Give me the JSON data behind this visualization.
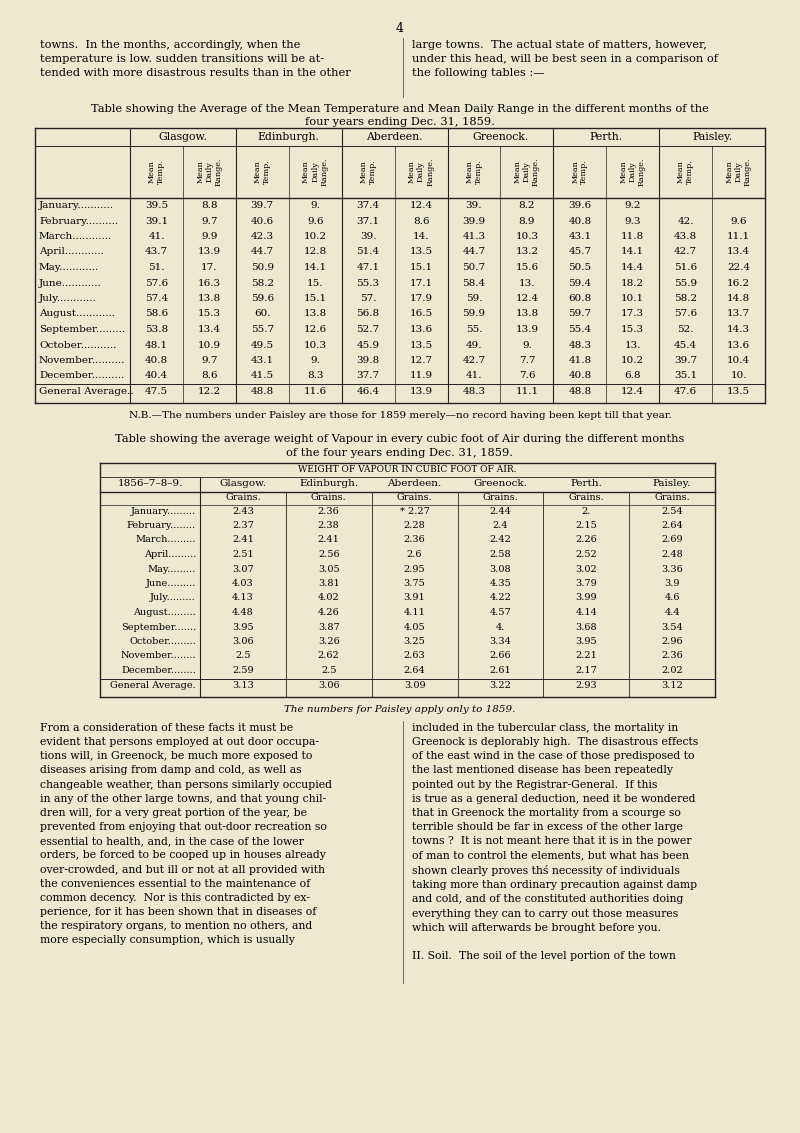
{
  "bg_color": "#ede8d0",
  "page_number": "4",
  "intro_left": "towns.  In the months, accordingly, when the\ntemperature is low. sudden transitions will be at-\ntended with more disastrous results than in the other",
  "intro_right": "large towns.  The actual state of matters, however,\nunder this head, will be best seen in a comparison of\nthe following tables :—",
  "table1_title_line1": "Table showing the Average of the Mean Temperature and Mean Daily Range in the different months of the",
  "table1_title_line2": "four years ending Dec. 31, 1859.",
  "table1_cities": [
    "Glasgow.",
    "Edinburgh.",
    "Aberdeen.",
    "Greenock.",
    "Perth.",
    "Paisley."
  ],
  "table1_months": [
    "January",
    "February",
    "March",
    "April",
    "May",
    "June",
    "July",
    "August",
    "September",
    "October",
    "November",
    "December"
  ],
  "table1_data": [
    [
      39.5,
      8.8,
      39.7,
      9.0,
      37.4,
      12.4,
      39.0,
      8.2,
      39.6,
      9.2,
      null,
      null
    ],
    [
      39.1,
      9.7,
      40.6,
      9.6,
      37.1,
      8.6,
      39.9,
      8.9,
      40.8,
      9.3,
      42.0,
      9.6
    ],
    [
      41.0,
      9.9,
      42.3,
      10.2,
      39.0,
      14.0,
      41.3,
      10.3,
      43.1,
      11.8,
      43.8,
      11.1
    ],
    [
      43.7,
      13.9,
      44.7,
      12.8,
      51.4,
      13.5,
      44.7,
      13.2,
      45.7,
      14.1,
      42.7,
      13.4
    ],
    [
      51.0,
      17.0,
      50.9,
      14.1,
      47.1,
      15.1,
      50.7,
      15.6,
      50.5,
      14.4,
      51.6,
      22.4
    ],
    [
      57.6,
      16.3,
      58.2,
      15.0,
      55.3,
      17.1,
      58.4,
      13.0,
      59.4,
      18.2,
      55.9,
      16.2
    ],
    [
      57.4,
      13.8,
      59.6,
      15.1,
      57.0,
      17.9,
      59.0,
      12.4,
      60.8,
      10.1,
      58.2,
      14.8
    ],
    [
      58.6,
      15.3,
      60.0,
      13.8,
      56.8,
      16.5,
      59.9,
      13.8,
      59.7,
      17.3,
      57.6,
      13.7
    ],
    [
      53.8,
      13.4,
      55.7,
      12.6,
      52.7,
      13.6,
      55.0,
      13.9,
      55.4,
      15.3,
      52.0,
      14.3
    ],
    [
      48.1,
      10.9,
      49.5,
      10.3,
      45.9,
      13.5,
      49.0,
      9.0,
      48.3,
      13.0,
      45.4,
      13.6
    ],
    [
      40.8,
      9.7,
      43.1,
      9.0,
      39.8,
      12.7,
      42.7,
      7.7,
      41.8,
      10.2,
      39.7,
      10.4
    ],
    [
      40.4,
      8.6,
      41.5,
      8.3,
      37.7,
      11.9,
      41.0,
      7.6,
      40.8,
      6.8,
      35.1,
      10.0
    ]
  ],
  "table1_avg": [
    47.5,
    12.2,
    48.8,
    11.6,
    46.4,
    13.9,
    48.3,
    11.1,
    48.8,
    12.4,
    47.6,
    13.5
  ],
  "table1_nb": "N.B.—The numbers under Paisley are those for 1859 merely—no record having been kept till that year.",
  "table2_title_line1": "Table showing the average weight of Vapour in every cubic foot of Air during the different months",
  "table2_title_line2": "of the four years ending Dec. 31, 1859.",
  "table2_header": "WEIGHT OF VAPOUR IN CUBIC FOOT OF AIR.",
  "table2_year": "1856–7–8–9.",
  "table2_cities": [
    "Glasgow.",
    "Edinburgh.",
    "Aberdeen.",
    "Greenock.",
    "Perth.",
    "Paisley."
  ],
  "table2_months": [
    "January",
    "February",
    "March",
    "April",
    "May",
    "June",
    "July",
    "August",
    "September",
    "October",
    "November",
    "December"
  ],
  "table2_data": [
    [
      2.43,
      2.36,
      2.27,
      2.44,
      2.0,
      2.54
    ],
    [
      2.37,
      2.38,
      2.28,
      2.4,
      2.15,
      2.64
    ],
    [
      2.41,
      2.41,
      2.36,
      2.42,
      2.26,
      2.69
    ],
    [
      2.51,
      2.56,
      2.6,
      2.58,
      2.52,
      2.48
    ],
    [
      3.07,
      3.05,
      2.95,
      3.08,
      3.02,
      3.36
    ],
    [
      4.03,
      3.81,
      3.75,
      4.35,
      3.79,
      3.9
    ],
    [
      4.13,
      4.02,
      3.91,
      4.22,
      3.99,
      4.6
    ],
    [
      4.48,
      4.26,
      4.11,
      4.57,
      4.14,
      4.4
    ],
    [
      3.95,
      3.87,
      4.05,
      4.0,
      3.68,
      3.54
    ],
    [
      3.06,
      3.26,
      3.25,
      3.34,
      3.95,
      2.96
    ],
    [
      2.5,
      2.62,
      2.63,
      2.66,
      2.21,
      2.36
    ],
    [
      2.59,
      2.5,
      2.64,
      2.61,
      2.17,
      2.02
    ]
  ],
  "table2_avg": [
    3.13,
    3.06,
    3.09,
    3.22,
    2.93,
    3.12
  ],
  "table2_nb": "The numbers for Paisley apply only to 1859.",
  "body_left": "From a consideration of these facts it must be\nevident that persons employed at out door occupa-\ntions will, in Greenock, be much more exposed to\ndiseases arising from damp and cold, as well as\nchangeable weather, than persons similarly occupied\nin any of the other large towns, and that young chil-\ndren will, for a very great portion of the year, be\nprevented from enjoying that out-door recreation so\nessential to health, and, in the case of the lower\norders, be forced to be cooped up in houses already\nover-crowded, and but ill or not at all provided with\nthe conveniences essential to the maintenance of\ncommon decency.  Nor is this contradicted by ex-\nperience, for it has been shown that in diseases of\nthe respiratory organs, to mention no others, and\nmore especially consumption, which is usually",
  "body_right": "included in the tubercular class, the mortality in\nGreenock is deplorably high.  The disastrous effects\nof the east wind in the case of those predisposed to\nthe last mentioned disease has been repeatedly\npointed out by the Registrar-General.  If this\nis true as a general deduction, need it be wondered\nthat in Greenock the mortality from a scourge so\nterrible should be far in excess of the other large\ntowns ?  It is not meant here that it is in the power\nof man to control the elements, but what has been\nshown clearly proves thś necessity of individuals\ntaking more than ordinary precaution against damp\nand cold, and of the constituted authorities doing\neverything they can to carry out those measures\nwhich will afterwards be brought before you.\n\nII. Soil.  The soil of the level portion of the town"
}
